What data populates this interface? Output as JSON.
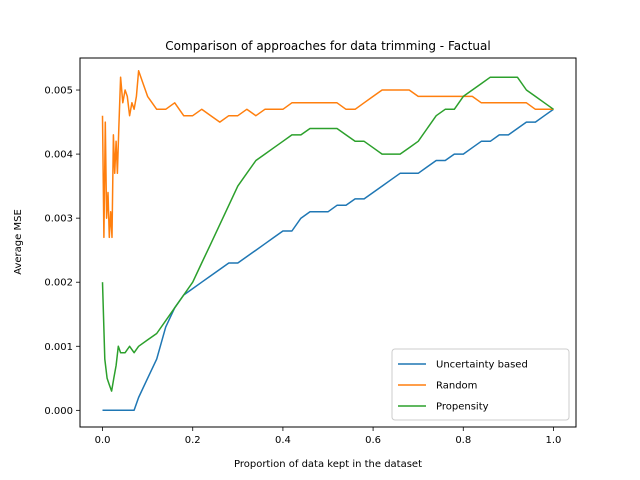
{
  "chart_data": {
    "type": "line",
    "title": "Comparison of approaches for data trimming - Factual",
    "xlabel": "Proportion of data kept in the dataset",
    "ylabel": "Average MSE",
    "xlim": [
      -0.05,
      1.05
    ],
    "ylim": [
      -0.00026,
      0.0055
    ],
    "x_ticks": [
      0.0,
      0.2,
      0.4,
      0.6,
      0.8,
      1.0
    ],
    "x_tick_labels": [
      "0.0",
      "0.2",
      "0.4",
      "0.6",
      "0.8",
      "1.0"
    ],
    "y_ticks": [
      0.0,
      0.001,
      0.002,
      0.003,
      0.004,
      0.005
    ],
    "y_tick_labels": [
      "0.000",
      "0.001",
      "0.002",
      "0.003",
      "0.004",
      "0.005"
    ],
    "grid": false,
    "legend_position": "lower-right",
    "series": [
      {
        "name": "Uncertainty based",
        "color": "#1f77b4",
        "x": [
          0.0,
          0.02,
          0.04,
          0.06,
          0.07,
          0.08,
          0.1,
          0.12,
          0.14,
          0.16,
          0.18,
          0.2,
          0.22,
          0.24,
          0.26,
          0.28,
          0.3,
          0.32,
          0.34,
          0.36,
          0.38,
          0.4,
          0.42,
          0.44,
          0.46,
          0.48,
          0.5,
          0.52,
          0.54,
          0.56,
          0.58,
          0.6,
          0.62,
          0.64,
          0.66,
          0.68,
          0.7,
          0.72,
          0.74,
          0.76,
          0.78,
          0.8,
          0.82,
          0.84,
          0.86,
          0.88,
          0.9,
          0.92,
          0.94,
          0.96,
          0.98,
          1.0
        ],
        "y": [
          0.0,
          0.0,
          0.0,
          0.0,
          0.0,
          0.0002,
          0.0005,
          0.0008,
          0.0013,
          0.0016,
          0.0018,
          0.0019,
          0.002,
          0.0021,
          0.0022,
          0.0023,
          0.0023,
          0.0024,
          0.0025,
          0.0026,
          0.0027,
          0.0028,
          0.0028,
          0.003,
          0.0031,
          0.0031,
          0.0031,
          0.0032,
          0.0032,
          0.0033,
          0.0033,
          0.0034,
          0.0035,
          0.0036,
          0.0037,
          0.0037,
          0.0037,
          0.0038,
          0.0039,
          0.0039,
          0.004,
          0.004,
          0.0041,
          0.0042,
          0.0042,
          0.0043,
          0.0043,
          0.0044,
          0.0045,
          0.0045,
          0.0046,
          0.0047
        ]
      },
      {
        "name": "Random",
        "color": "#ff7f0e",
        "x": [
          0.0,
          0.003,
          0.006,
          0.009,
          0.012,
          0.015,
          0.018,
          0.021,
          0.024,
          0.027,
          0.03,
          0.033,
          0.036,
          0.04,
          0.045,
          0.05,
          0.055,
          0.06,
          0.065,
          0.07,
          0.075,
          0.08,
          0.09,
          0.1,
          0.12,
          0.14,
          0.16,
          0.18,
          0.2,
          0.22,
          0.24,
          0.26,
          0.28,
          0.3,
          0.32,
          0.34,
          0.36,
          0.38,
          0.4,
          0.42,
          0.44,
          0.46,
          0.48,
          0.5,
          0.52,
          0.54,
          0.56,
          0.58,
          0.6,
          0.62,
          0.64,
          0.66,
          0.68,
          0.7,
          0.72,
          0.74,
          0.76,
          0.78,
          0.8,
          0.82,
          0.84,
          0.86,
          0.88,
          0.9,
          0.92,
          0.94,
          0.96,
          0.98,
          1.0
        ],
        "y": [
          0.0046,
          0.0027,
          0.0045,
          0.003,
          0.0034,
          0.0027,
          0.0031,
          0.0027,
          0.0043,
          0.0037,
          0.0042,
          0.0037,
          0.0044,
          0.0052,
          0.0048,
          0.005,
          0.0049,
          0.0046,
          0.0048,
          0.0047,
          0.0049,
          0.0053,
          0.0051,
          0.0049,
          0.0047,
          0.0047,
          0.0048,
          0.0046,
          0.0046,
          0.0047,
          0.0046,
          0.0045,
          0.0046,
          0.0046,
          0.0047,
          0.0046,
          0.0047,
          0.0047,
          0.0047,
          0.0048,
          0.0048,
          0.0048,
          0.0048,
          0.0048,
          0.0048,
          0.0047,
          0.0047,
          0.0048,
          0.0049,
          0.005,
          0.005,
          0.005,
          0.005,
          0.0049,
          0.0049,
          0.0049,
          0.0049,
          0.0049,
          0.0049,
          0.0049,
          0.0048,
          0.0048,
          0.0048,
          0.0048,
          0.0048,
          0.0048,
          0.0047,
          0.0047,
          0.0047
        ]
      },
      {
        "name": "Propensity",
        "color": "#2ca02c",
        "x": [
          0.0,
          0.005,
          0.01,
          0.015,
          0.02,
          0.025,
          0.03,
          0.035,
          0.04,
          0.05,
          0.06,
          0.07,
          0.08,
          0.1,
          0.12,
          0.14,
          0.16,
          0.18,
          0.2,
          0.22,
          0.24,
          0.26,
          0.28,
          0.3,
          0.32,
          0.34,
          0.36,
          0.38,
          0.4,
          0.42,
          0.44,
          0.46,
          0.48,
          0.5,
          0.52,
          0.54,
          0.56,
          0.58,
          0.6,
          0.62,
          0.64,
          0.66,
          0.68,
          0.7,
          0.72,
          0.74,
          0.76,
          0.78,
          0.8,
          0.82,
          0.84,
          0.86,
          0.88,
          0.9,
          0.92,
          0.94,
          0.96,
          0.98,
          1.0
        ],
        "y": [
          0.002,
          0.0008,
          0.0005,
          0.0004,
          0.0003,
          0.0005,
          0.0007,
          0.001,
          0.0009,
          0.0009,
          0.001,
          0.0009,
          0.001,
          0.0011,
          0.0012,
          0.0014,
          0.0016,
          0.0018,
          0.002,
          0.0023,
          0.0026,
          0.0029,
          0.0032,
          0.0035,
          0.0037,
          0.0039,
          0.004,
          0.0041,
          0.0042,
          0.0043,
          0.0043,
          0.0044,
          0.0044,
          0.0044,
          0.0044,
          0.0043,
          0.0042,
          0.0042,
          0.0041,
          0.004,
          0.004,
          0.004,
          0.0041,
          0.0042,
          0.0044,
          0.0046,
          0.0047,
          0.0047,
          0.0049,
          0.005,
          0.0051,
          0.0052,
          0.0052,
          0.0052,
          0.0052,
          0.005,
          0.0049,
          0.0048,
          0.0047
        ]
      }
    ]
  }
}
